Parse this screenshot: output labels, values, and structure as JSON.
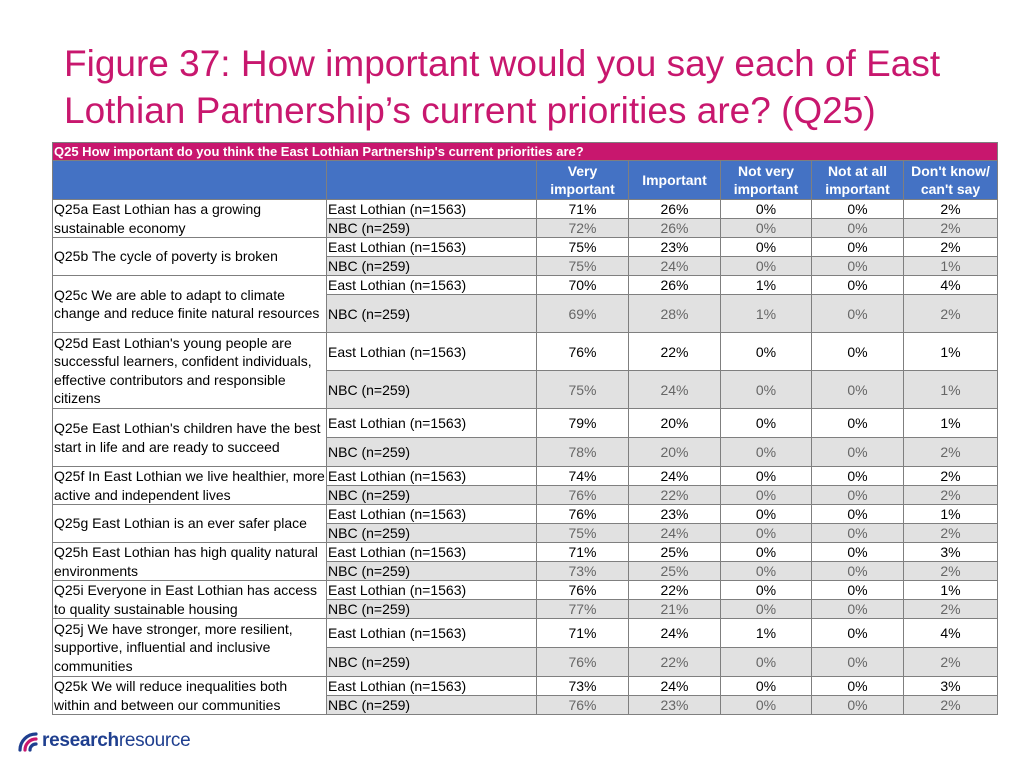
{
  "title": "Figure 37: How important would you say each of East Lothian Partnership’s current priorities are? (Q25)",
  "table": {
    "banner": "Q25 How important do you think the East Lothian Partnership's current priorities are?",
    "headers": [
      "Very important",
      "Important",
      "Not very important",
      "Not at all important",
      "Don't know/ can't say"
    ],
    "questions": [
      {
        "label": "Q25a East Lothian has a growing sustainable economy",
        "rows": [
          {
            "group": "East Lothian (n=1563)",
            "values": [
              "71%",
              "26%",
              "0%",
              "0%",
              "2%"
            ]
          },
          {
            "group": "NBC (n=259)",
            "values": [
              "72%",
              "26%",
              "0%",
              "0%",
              "2%"
            ]
          }
        ]
      },
      {
        "label": "Q25b The cycle of poverty is broken",
        "rows": [
          {
            "group": "East Lothian (n=1563)",
            "values": [
              "75%",
              "23%",
              "0%",
              "0%",
              "2%"
            ]
          },
          {
            "group": "NBC (n=259)",
            "values": [
              "75%",
              "24%",
              "0%",
              "0%",
              "1%"
            ]
          }
        ]
      },
      {
        "label": "Q25c We are able to adapt to climate change and reduce finite natural resources",
        "rows": [
          {
            "group": "East Lothian (n=1563)",
            "values": [
              "70%",
              "26%",
              "1%",
              "0%",
              "4%"
            ]
          },
          {
            "group": "NBC (n=259)",
            "values": [
              "69%",
              "28%",
              "1%",
              "0%",
              "2%"
            ]
          }
        ]
      },
      {
        "label": "Q25d East Lothian's young people are successful learners, confident individuals, effective contributors and responsible citizens",
        "rows": [
          {
            "group": "East Lothian (n=1563)",
            "values": [
              "76%",
              "22%",
              "0%",
              "0%",
              "1%"
            ]
          },
          {
            "group": "NBC (n=259)",
            "values": [
              "75%",
              "24%",
              "0%",
              "0%",
              "1%"
            ]
          }
        ]
      },
      {
        "label": "Q25e East Lothian's children have the best start in life and are ready to succeed",
        "rows": [
          {
            "group": "East Lothian (n=1563)",
            "values": [
              "79%",
              "20%",
              "0%",
              "0%",
              "1%"
            ]
          },
          {
            "group": "NBC (n=259)",
            "values": [
              "78%",
              "20%",
              "0%",
              "0%",
              "2%"
            ]
          }
        ]
      },
      {
        "label": "Q25f In East Lothian we live healthier, more active and independent lives",
        "rows": [
          {
            "group": "East Lothian (n=1563)",
            "values": [
              "74%",
              "24%",
              "0%",
              "0%",
              "2%"
            ]
          },
          {
            "group": "NBC (n=259)",
            "values": [
              "76%",
              "22%",
              "0%",
              "0%",
              "2%"
            ]
          }
        ]
      },
      {
        "label": "Q25g East Lothian is an ever safer place",
        "rows": [
          {
            "group": "East Lothian (n=1563)",
            "values": [
              "76%",
              "23%",
              "0%",
              "0%",
              "1%"
            ]
          },
          {
            "group": "NBC (n=259)",
            "values": [
              "75%",
              "24%",
              "0%",
              "0%",
              "2%"
            ]
          }
        ]
      },
      {
        "label": "Q25h East Lothian has high quality natural environments",
        "rows": [
          {
            "group": "East Lothian (n=1563)",
            "values": [
              "71%",
              "25%",
              "0%",
              "0%",
              "3%"
            ]
          },
          {
            "group": "NBC (n=259)",
            "values": [
              "73%",
              "25%",
              "0%",
              "0%",
              "2%"
            ]
          }
        ]
      },
      {
        "label": "Q25i Everyone in East Lothian has access to quality sustainable housing",
        "rows": [
          {
            "group": "East Lothian (n=1563)",
            "values": [
              "76%",
              "22%",
              "0%",
              "0%",
              "1%"
            ]
          },
          {
            "group": "NBC (n=259)",
            "values": [
              "77%",
              "21%",
              "0%",
              "0%",
              "2%"
            ]
          }
        ]
      },
      {
        "label": "Q25j We have stronger, more resilient, supportive, influential and inclusive communities",
        "rows": [
          {
            "group": "East Lothian (n=1563)",
            "values": [
              "71%",
              "24%",
              "1%",
              "0%",
              "4%"
            ]
          },
          {
            "group": "NBC (n=259)",
            "values": [
              "76%",
              "22%",
              "0%",
              "0%",
              "2%"
            ]
          }
        ]
      },
      {
        "label": "Q25k We will reduce inequalities both within and between our communities",
        "rows": [
          {
            "group": "East Lothian (n=1563)",
            "values": [
              "73%",
              "24%",
              "0%",
              "0%",
              "3%"
            ]
          },
          {
            "group": "NBC (n=259)",
            "values": [
              "76%",
              "23%",
              "0%",
              "0%",
              "2%"
            ]
          }
        ]
      }
    ]
  },
  "logo": {
    "bold_part": "research",
    "light_part": "resource"
  },
  "colors": {
    "title": "#c8176e",
    "banner": "#c8176e",
    "header": "#4472c4",
    "nbc_row": "#e1e1e1"
  }
}
